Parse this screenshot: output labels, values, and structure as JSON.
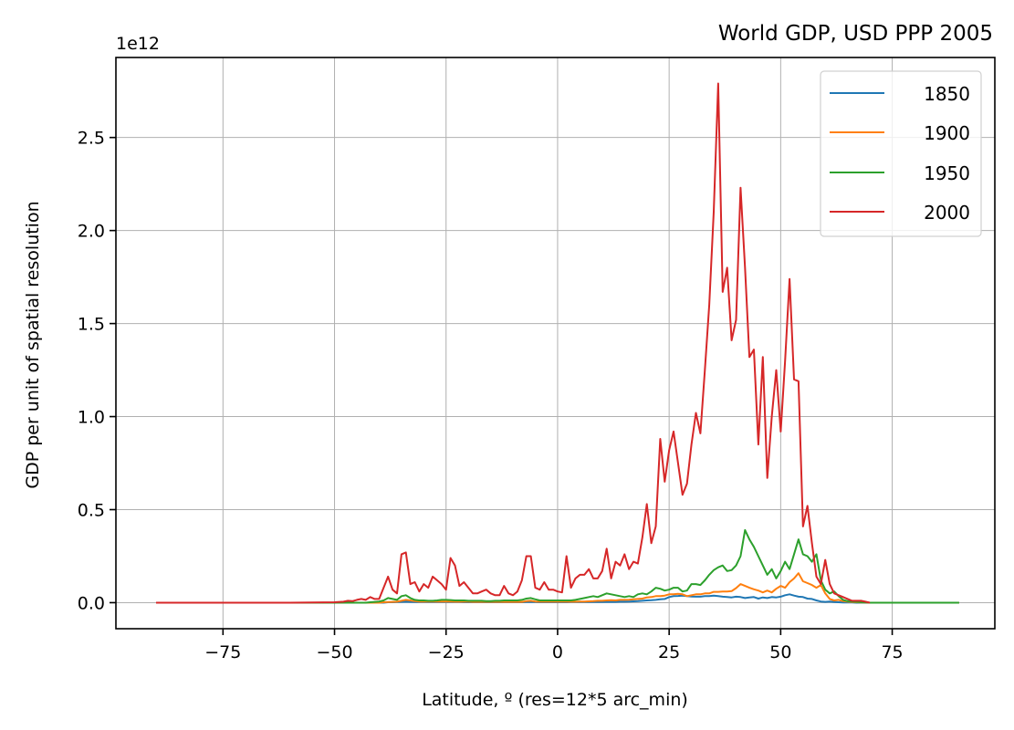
{
  "chart_data": {
    "type": "line",
    "title": "World GDP, USD PPP 2005",
    "xlabel": "Latitude, º (res=12*5 arc_min)",
    "ylabel": "GDP per unit of spatial resolution",
    "y_offset_label": "1e12",
    "xlim": [
      -99,
      98
    ],
    "ylim": [
      -0.14,
      2.93
    ],
    "x_ticks": [
      -75,
      -50,
      -25,
      0,
      25,
      50,
      75
    ],
    "x_tick_labels": [
      "−75",
      "−50",
      "−25",
      "0",
      "25",
      "50",
      "75"
    ],
    "y_ticks": [
      0.0,
      0.5,
      1.0,
      1.5,
      2.0,
      2.5
    ],
    "y_tick_labels": [
      "0.0",
      "0.5",
      "1.0",
      "1.5",
      "2.0",
      "2.5"
    ],
    "grid": true,
    "legend_position": "upper right",
    "units_note": "values in units of 1e12",
    "x": [
      -90,
      -60,
      -50,
      -48,
      -47,
      -46,
      -45,
      -44,
      -43,
      -42,
      -41,
      -40,
      -39,
      -38,
      -37,
      -36,
      -35,
      -34,
      -33,
      -32,
      -31,
      -30,
      -29,
      -28,
      -27,
      -26,
      -25,
      -24,
      -23,
      -22,
      -21,
      -20,
      -19,
      -18,
      -17,
      -16,
      -15,
      -14,
      -13,
      -12,
      -11,
      -10,
      -9,
      -8,
      -7,
      -6,
      -5,
      -4,
      -3,
      -2,
      -1,
      0,
      1,
      2,
      3,
      4,
      5,
      6,
      7,
      8,
      9,
      10,
      11,
      12,
      13,
      14,
      15,
      16,
      17,
      18,
      19,
      20,
      21,
      22,
      23,
      24,
      25,
      26,
      27,
      28,
      29,
      30,
      31,
      32,
      33,
      34,
      35,
      36,
      37,
      38,
      39,
      40,
      41,
      42,
      43,
      44,
      45,
      46,
      47,
      48,
      49,
      50,
      51,
      52,
      53,
      54,
      55,
      56,
      57,
      58,
      59,
      60,
      61,
      62,
      63,
      64,
      65,
      66,
      67,
      68,
      69,
      70,
      72,
      90
    ],
    "series": [
      {
        "name": "1850",
        "color": "#1f77b4",
        "values": [
          0,
          0,
          0,
          0,
          0,
          0,
          0,
          0,
          0,
          0,
          0,
          0,
          0,
          0.002,
          0.002,
          0.003,
          0.004,
          0.005,
          0.004,
          0.003,
          0.003,
          0.003,
          0.003,
          0.003,
          0.003,
          0.003,
          0.003,
          0.003,
          0.003,
          0.003,
          0.002,
          0.002,
          0.002,
          0.002,
          0.002,
          0.002,
          0.002,
          0.002,
          0.002,
          0.002,
          0.002,
          0.002,
          0.002,
          0.002,
          0.003,
          0.003,
          0.003,
          0.002,
          0.002,
          0.002,
          0.002,
          0.002,
          0.002,
          0.002,
          0.003,
          0.003,
          0.003,
          0.003,
          0.003,
          0.003,
          0.003,
          0.003,
          0.004,
          0.004,
          0.004,
          0.005,
          0.005,
          0.006,
          0.007,
          0.008,
          0.01,
          0.012,
          0.013,
          0.015,
          0.018,
          0.02,
          0.03,
          0.035,
          0.036,
          0.038,
          0.035,
          0.033,
          0.032,
          0.032,
          0.035,
          0.035,
          0.038,
          0.035,
          0.032,
          0.03,
          0.028,
          0.032,
          0.03,
          0.025,
          0.028,
          0.03,
          0.022,
          0.028,
          0.025,
          0.03,
          0.028,
          0.032,
          0.04,
          0.045,
          0.038,
          0.032,
          0.03,
          0.022,
          0.02,
          0.012,
          0.006,
          0.004,
          0.006,
          0.003,
          0.002,
          0.001,
          0.001,
          0.001,
          0,
          0,
          0,
          0,
          0,
          0
        ]
      },
      {
        "name": "1900",
        "color": "#ff7f0e",
        "values": [
          0,
          0,
          0,
          0,
          0,
          0,
          0,
          0,
          0,
          0,
          0,
          0,
          0.002,
          0.003,
          0.004,
          0.005,
          0.01,
          0.015,
          0.012,
          0.008,
          0.006,
          0.006,
          0.006,
          0.006,
          0.006,
          0.006,
          0.006,
          0.006,
          0.005,
          0.005,
          0.005,
          0.005,
          0.004,
          0.004,
          0.004,
          0.004,
          0.004,
          0.004,
          0.004,
          0.004,
          0.004,
          0.004,
          0.004,
          0.004,
          0.008,
          0.01,
          0.006,
          0.005,
          0.005,
          0.005,
          0.005,
          0.005,
          0.005,
          0.005,
          0.005,
          0.005,
          0.006,
          0.006,
          0.007,
          0.008,
          0.01,
          0.01,
          0.012,
          0.013,
          0.012,
          0.015,
          0.015,
          0.016,
          0.018,
          0.02,
          0.022,
          0.028,
          0.03,
          0.035,
          0.035,
          0.038,
          0.045,
          0.045,
          0.048,
          0.045,
          0.035,
          0.04,
          0.045,
          0.045,
          0.05,
          0.05,
          0.058,
          0.058,
          0.06,
          0.06,
          0.062,
          0.078,
          0.1,
          0.09,
          0.08,
          0.072,
          0.065,
          0.055,
          0.065,
          0.055,
          0.075,
          0.09,
          0.08,
          0.11,
          0.13,
          0.158,
          0.115,
          0.105,
          0.095,
          0.08,
          0.095,
          0.05,
          0.02,
          0.012,
          0.015,
          0.008,
          0.005,
          0.003,
          0.002,
          0.001,
          0.001,
          0,
          0,
          0
        ]
      },
      {
        "name": "1950",
        "color": "#2ca02c",
        "values": [
          0,
          0,
          0,
          0,
          0,
          0,
          0,
          0,
          0,
          0.002,
          0.004,
          0.006,
          0.012,
          0.025,
          0.02,
          0.015,
          0.035,
          0.04,
          0.025,
          0.015,
          0.012,
          0.012,
          0.01,
          0.01,
          0.012,
          0.015,
          0.015,
          0.014,
          0.012,
          0.012,
          0.012,
          0.01,
          0.01,
          0.01,
          0.01,
          0.008,
          0.008,
          0.01,
          0.01,
          0.012,
          0.012,
          0.012,
          0.012,
          0.015,
          0.022,
          0.025,
          0.018,
          0.012,
          0.012,
          0.012,
          0.012,
          0.012,
          0.012,
          0.012,
          0.012,
          0.015,
          0.02,
          0.025,
          0.03,
          0.035,
          0.03,
          0.04,
          0.05,
          0.045,
          0.04,
          0.035,
          0.03,
          0.035,
          0.03,
          0.045,
          0.05,
          0.045,
          0.06,
          0.08,
          0.075,
          0.065,
          0.07,
          0.08,
          0.08,
          0.06,
          0.065,
          0.1,
          0.1,
          0.095,
          0.12,
          0.15,
          0.175,
          0.19,
          0.2,
          0.17,
          0.175,
          0.2,
          0.25,
          0.39,
          0.34,
          0.3,
          0.25,
          0.2,
          0.15,
          0.18,
          0.13,
          0.17,
          0.22,
          0.18,
          0.26,
          0.34,
          0.26,
          0.25,
          0.22,
          0.26,
          0.12,
          0.07,
          0.05,
          0.06,
          0.035,
          0.015,
          0.008,
          0.006,
          0.004,
          0.002,
          0.001,
          0,
          0,
          0
        ]
      },
      {
        "name": "2000",
        "color": "#d62728",
        "values": [
          0,
          0,
          0.002,
          0.005,
          0.01,
          0.008,
          0.015,
          0.02,
          0.015,
          0.03,
          0.02,
          0.02,
          0.08,
          0.14,
          0.07,
          0.05,
          0.26,
          0.27,
          0.1,
          0.11,
          0.06,
          0.1,
          0.08,
          0.14,
          0.12,
          0.1,
          0.07,
          0.24,
          0.2,
          0.09,
          0.11,
          0.08,
          0.05,
          0.05,
          0.06,
          0.07,
          0.05,
          0.04,
          0.04,
          0.09,
          0.05,
          0.04,
          0.06,
          0.12,
          0.25,
          0.25,
          0.08,
          0.07,
          0.11,
          0.07,
          0.07,
          0.06,
          0.055,
          0.25,
          0.08,
          0.13,
          0.15,
          0.15,
          0.18,
          0.13,
          0.13,
          0.17,
          0.29,
          0.13,
          0.22,
          0.2,
          0.26,
          0.18,
          0.22,
          0.21,
          0.35,
          0.53,
          0.32,
          0.41,
          0.88,
          0.65,
          0.82,
          0.92,
          0.75,
          0.58,
          0.64,
          0.85,
          1.02,
          0.91,
          1.25,
          1.6,
          2.1,
          2.79,
          1.67,
          1.8,
          1.41,
          1.52,
          2.23,
          1.8,
          1.32,
          1.36,
          0.85,
          1.32,
          0.67,
          1.0,
          1.25,
          0.92,
          1.3,
          1.74,
          1.2,
          1.19,
          0.41,
          0.52,
          0.32,
          0.14,
          0.1,
          0.23,
          0.1,
          0.05,
          0.04,
          0.03,
          0.02,
          0.01,
          0.01,
          0.01,
          0.005,
          0
        ]
      }
    ]
  },
  "legend": {
    "items": [
      {
        "label": "1850",
        "color": "#1f77b4"
      },
      {
        "label": "1900",
        "color": "#ff7f0e"
      },
      {
        "label": "1950",
        "color": "#2ca02c"
      },
      {
        "label": "2000",
        "color": "#d62728"
      }
    ]
  }
}
